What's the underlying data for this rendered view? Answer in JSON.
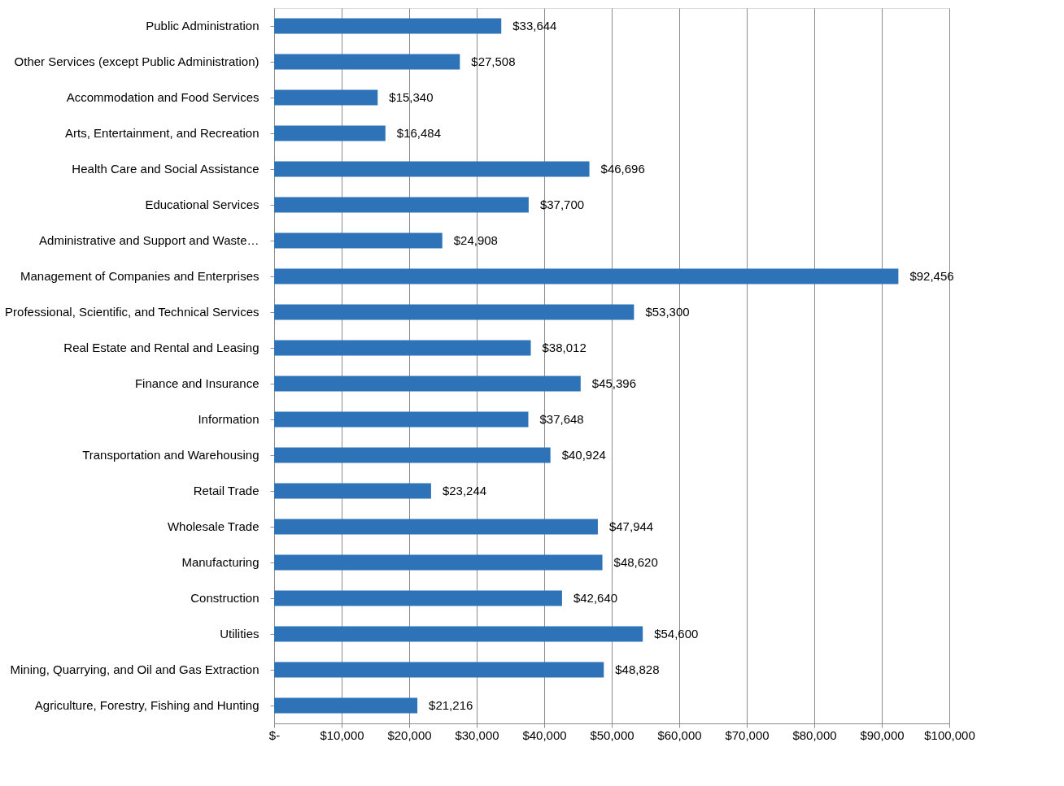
{
  "chart_data": {
    "type": "bar",
    "orientation": "horizontal",
    "categories": [
      "Public Administration",
      "Other Services (except Public Administration)",
      "Accommodation and Food Services",
      "Arts, Entertainment, and Recreation",
      "Health Care and Social Assistance",
      "Educational Services",
      "Administrative and Support and Waste…",
      "Management of Companies and Enterprises",
      "Professional, Scientific, and Technical Services",
      "Real Estate and Rental and Leasing",
      "Finance and Insurance",
      "Information",
      "Transportation and Warehousing",
      "Retail Trade",
      "Wholesale Trade",
      "Manufacturing",
      "Construction",
      "Utilities",
      "Mining, Quarrying, and Oil and Gas Extraction",
      "Agriculture, Forestry, Fishing and Hunting"
    ],
    "values": [
      33644,
      27508,
      15340,
      16484,
      46696,
      37700,
      24908,
      92456,
      53300,
      38012,
      45396,
      37648,
      40924,
      23244,
      47944,
      48620,
      42640,
      54600,
      48828,
      21216
    ],
    "value_labels": [
      "$33,644",
      "$27,508",
      "$15,340",
      "$16,484",
      "$46,696",
      "$37,700",
      "$24,908",
      "$92,456",
      "$53,300",
      "$38,012",
      "$45,396",
      "$37,648",
      "$40,924",
      "$23,244",
      "$47,944",
      "$48,620",
      "$42,640",
      "$54,600",
      "$48,828",
      "$21,216"
    ],
    "color": "#2e72b8",
    "xlim": [
      0,
      100000
    ],
    "xticks": [
      {
        "value": 0,
        "label": "$-"
      },
      {
        "value": 10000,
        "label": "$10,000"
      },
      {
        "value": 20000,
        "label": "$20,000"
      },
      {
        "value": 30000,
        "label": "$30,000"
      },
      {
        "value": 40000,
        "label": "$40,000"
      },
      {
        "value": 50000,
        "label": "$50,000"
      },
      {
        "value": 60000,
        "label": "$60,000"
      },
      {
        "value": 70000,
        "label": "$70,000"
      },
      {
        "value": 80000,
        "label": "$80,000"
      },
      {
        "value": 90000,
        "label": "$90,000"
      },
      {
        "value": 100000,
        "label": "$100,000"
      }
    ],
    "grid": "x"
  }
}
